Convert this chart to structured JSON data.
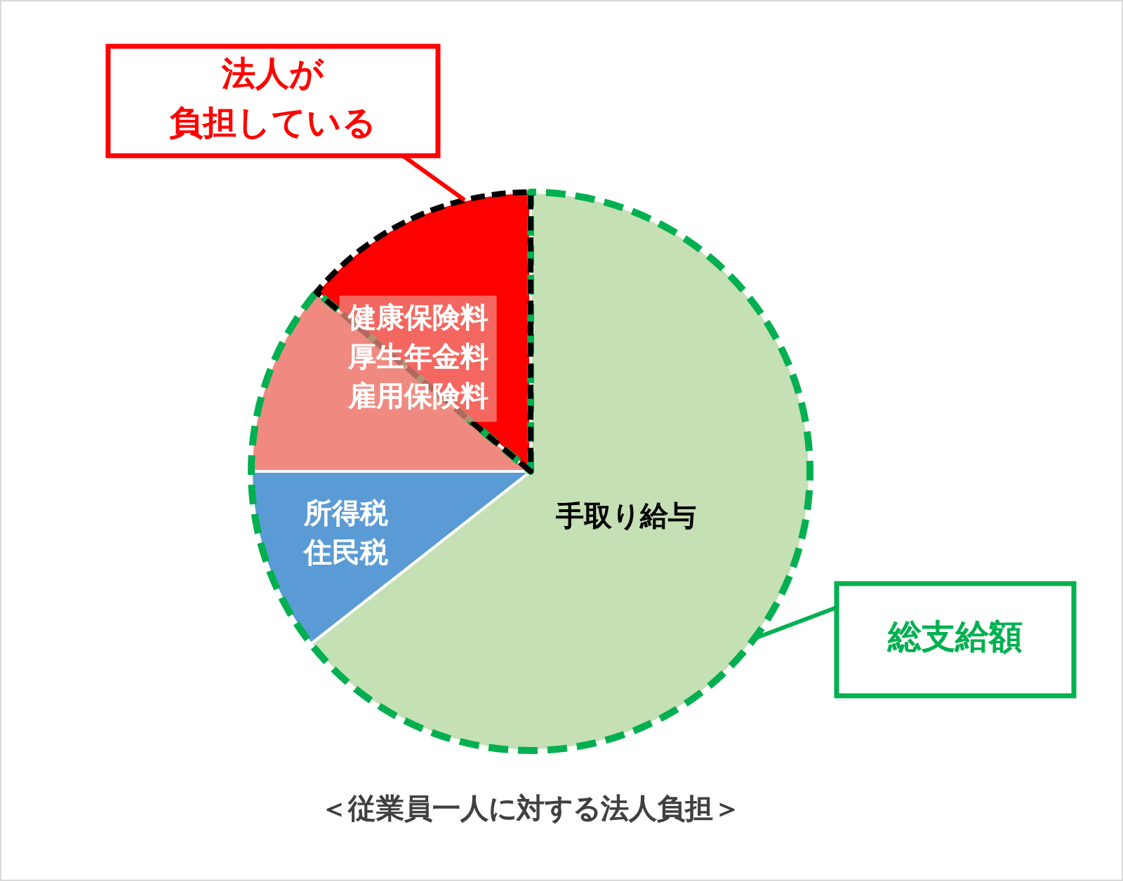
{
  "chart_data": {
    "type": "pie",
    "title": "＜従業員一人に対する法人負担＞",
    "categories": [
      "手取り給与",
      "所得税住民税",
      null,
      "健康保険料厚生年金料雇用保険料"
    ],
    "values": [
      64.4,
      10.6,
      11.1,
      13.9
    ],
    "colors": [
      "#c5e0b4",
      "#5b9bd5",
      "#f08a80",
      "#ff0000"
    ],
    "annotations": [
      "法人が負担している",
      "総支給額"
    ]
  }
}
